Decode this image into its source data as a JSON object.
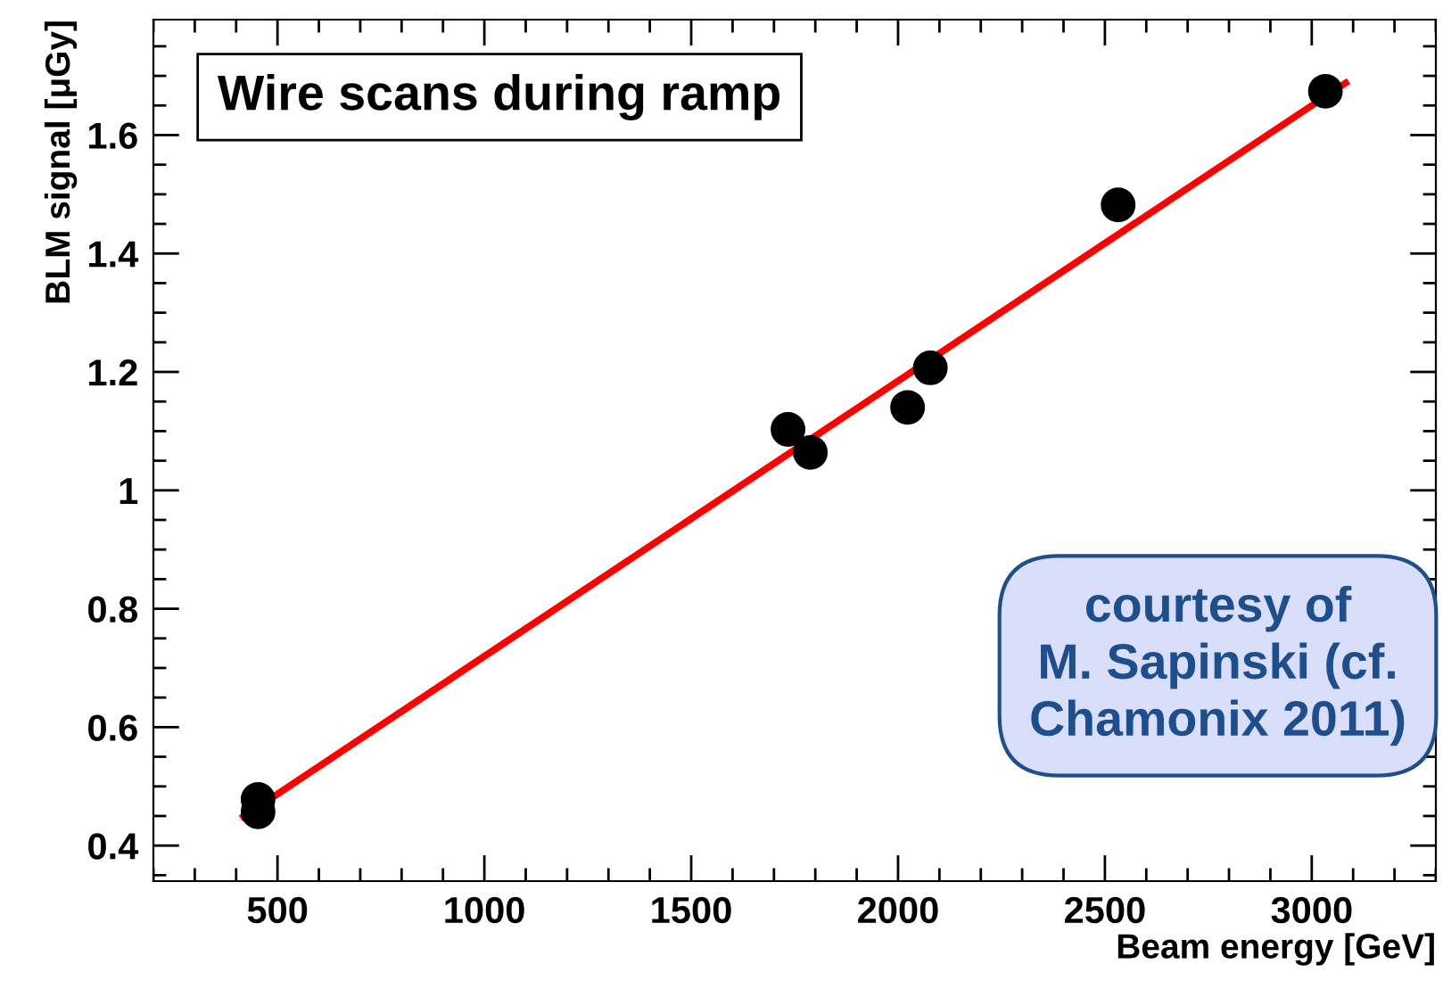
{
  "chart_data": {
    "type": "scatter",
    "xlabel": "Beam energy [GeV]",
    "ylabel": "BLM signal [μGy]",
    "annotations": [
      "Wire scans during ramp",
      "courtesy of\nM. Sapinski (cf.\nChamonix 2011)"
    ],
    "series": [
      {
        "marker": "circle",
        "color": "#000000",
        "x": [
          453,
          453,
          1734,
          1788,
          2023,
          2078,
          2532,
          3033
        ],
        "values": [
          0.478,
          0.457,
          1.103,
          1.064,
          1.14,
          1.207,
          1.482,
          1.674
        ]
      },
      {
        "type": "line",
        "color": "#ff0000",
        "x": [
          418,
          3082
        ],
        "values": [
          0.449,
          1.688
        ]
      }
    ],
    "xlim": [
      200,
      3300
    ],
    "ylim": [
      0.34,
      1.795
    ],
    "xticks": [
      500,
      1000,
      1500,
      2000,
      2500,
      3000
    ],
    "yticks": [
      0.4,
      0.6,
      0.8,
      {
        "value": 1,
        "label": "1"
      },
      1.2,
      1.4,
      1.6
    ],
    "grid": false,
    "legend": false
  }
}
